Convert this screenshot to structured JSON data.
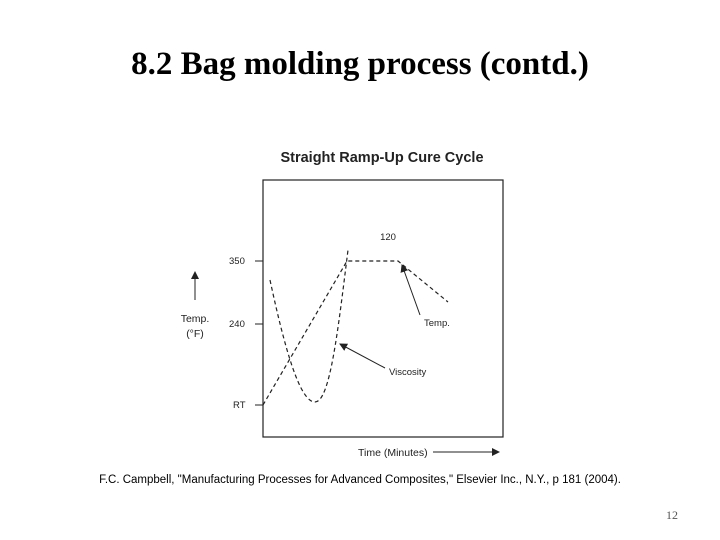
{
  "slide": {
    "title": "8.2 Bag molding process (contd.)",
    "citation": "F.C. Campbell, \"Manufacturing Processes for Advanced Composites,\" Elsevier Inc., N.Y., p 181 (2004).",
    "page_number": "12"
  },
  "figure": {
    "title": "Straight Ramp-Up Cure Cycle",
    "xlabel": "Time (Minutes)",
    "ylabel_line1": "Temp.",
    "ylabel_line2": "(°F)",
    "y_ticks": [
      "350",
      "240",
      "RT"
    ],
    "hold_label": "120",
    "temp_label": "Temp.",
    "viscosity_label": "Viscosity"
  }
}
